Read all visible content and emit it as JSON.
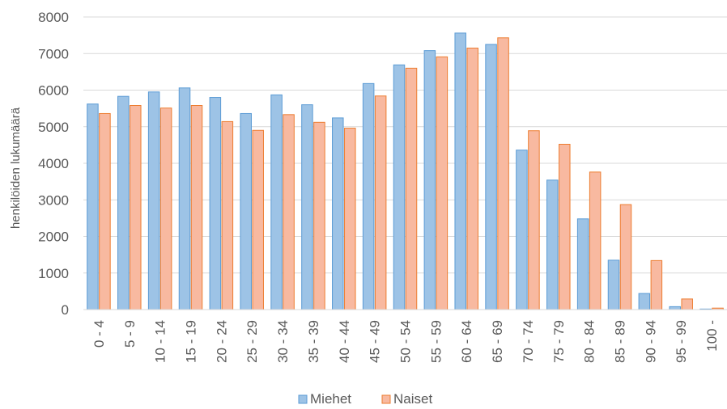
{
  "chart_data": {
    "type": "bar",
    "ylabel": "henkilöiden lukumäärä",
    "ylim": [
      0,
      8000
    ],
    "yticks": [
      0,
      1000,
      2000,
      3000,
      4000,
      5000,
      6000,
      7000,
      8000
    ],
    "grid": true,
    "legend_position": "bottom",
    "categories": [
      "0 - 4",
      "5 - 9",
      "10 - 14",
      "15 - 19",
      "20 - 24",
      "25 - 29",
      "30 - 34",
      "35 - 39",
      "40 - 44",
      "45 - 49",
      "50 - 54",
      "55 - 59",
      "60 - 64",
      "65 - 69",
      "70 - 74",
      "75 - 79",
      "80 - 84",
      "85 - 89",
      "90 - 94",
      "95 - 99",
      "100 -"
    ],
    "series": [
      {
        "name": "Miehet",
        "color": "#9dc3e6",
        "edge": "#5b9bd5",
        "values": [
          5620,
          5830,
          5950,
          6060,
          5800,
          5360,
          5870,
          5600,
          5240,
          6180,
          6690,
          7080,
          7560,
          7250,
          4360,
          3540,
          2480,
          1350,
          440,
          80,
          15
        ]
      },
      {
        "name": "Naiset",
        "color": "#f8b9a0",
        "edge": "#ed7d31",
        "values": [
          5360,
          5580,
          5510,
          5580,
          5140,
          4900,
          5330,
          5120,
          4960,
          5840,
          6600,
          6910,
          7150,
          7430,
          4890,
          4520,
          3760,
          2870,
          1340,
          290,
          40
        ]
      }
    ]
  }
}
